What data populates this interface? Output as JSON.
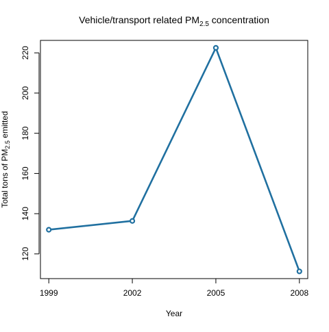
{
  "chart_data": {
    "type": "line",
    "title": {
      "main": "Vehicle/transport related PM",
      "sub": "2.5",
      "after": " concentration"
    },
    "xlabel": "Year",
    "ylabel": {
      "main": "Total tons of PM",
      "sub": "2.5",
      "after": " emitted"
    },
    "x": [
      1999,
      2002,
      2005,
      2008
    ],
    "x_tick_labels": [
      "1999",
      "2002",
      "2005",
      "2008"
    ],
    "y_ticks": [
      120,
      140,
      160,
      180,
      200,
      220
    ],
    "y_tick_labels": [
      "120",
      "140",
      "160",
      "180",
      "200",
      "220"
    ],
    "series": [
      {
        "values": [
          132,
          136.4,
          222.5,
          111.3
        ]
      }
    ],
    "xlim": [
      1998.7,
      2008.3
    ],
    "ylim": [
      107.7,
      226.2
    ],
    "line_color": "#2070a0",
    "marker": "open-circle",
    "grid": false,
    "legend": false
  }
}
